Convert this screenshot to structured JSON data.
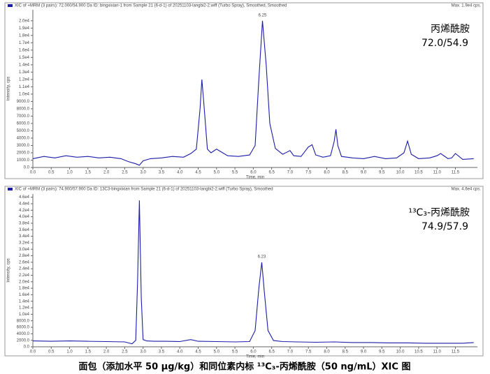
{
  "chart_data": [
    {
      "type": "line",
      "series": [
        {
          "name": "XIC of +MRM (3 pairs): 72.000/54.900 Da ID: bingxixian-1 from Sample 21 (6-d-1) of 20251103-langbi2-2.wiff (Turbo Spray), Smoothed, Smoothed",
          "color": "#1c1ca8",
          "values": [
            1200,
            1500,
            1300,
            1600,
            1400,
            1500,
            1300,
            1400,
            1200,
            800,
            500,
            300,
            900,
            1200,
            1300,
            1500,
            1400,
            1900,
            2500,
            8000,
            12000,
            9000,
            2500,
            2000,
            2500,
            2200,
            1600,
            1500,
            1700,
            3000,
            12000,
            20000,
            14000,
            6000,
            2600,
            1800,
            2300,
            1600,
            1500,
            2800,
            3100,
            1700,
            1400,
            1600,
            3500,
            5200,
            3000,
            1500,
            1300,
            1200,
            1500,
            1200,
            1300,
            2000,
            3600,
            1800,
            1200,
            1300,
            1600,
            1900,
            1200,
            1300,
            1900,
            1100,
            1200
          ]
        }
      ],
      "x": [
        0,
        0.3,
        0.6,
        0.9,
        1.2,
        1.5,
        1.8,
        2.1,
        2.4,
        2.6,
        2.8,
        2.9,
        3.0,
        3.2,
        3.5,
        3.8,
        4.1,
        4.3,
        4.45,
        4.55,
        4.6,
        4.65,
        4.75,
        4.85,
        5.0,
        5.1,
        5.3,
        5.6,
        5.9,
        6.05,
        6.15,
        6.25,
        6.35,
        6.45,
        6.6,
        6.8,
        7.0,
        7.1,
        7.3,
        7.5,
        7.6,
        7.7,
        7.9,
        8.1,
        8.2,
        8.25,
        8.3,
        8.4,
        8.7,
        9.0,
        9.3,
        9.6,
        9.9,
        10.1,
        10.2,
        10.3,
        10.5,
        10.8,
        11.0,
        11.1,
        11.3,
        11.4,
        11.5,
        11.7,
        12.0
      ],
      "max_label": "Max. 1.9e4 cps.",
      "peak_label": "6.25",
      "compound": "丙烯酰胺",
      "transition": "72.0/54.9",
      "xlabel": "Time, min",
      "ylabel": "Intensity, cps",
      "xlim": [
        0,
        12.1
      ],
      "ylim": [
        0,
        21500
      ],
      "xticks": [
        {
          "value": 0,
          "label": "0.0"
        },
        0.5,
        {
          "value": 1,
          "label": "1.0"
        },
        1.5,
        {
          "value": 2,
          "label": "2.0"
        },
        2.5,
        {
          "value": 3,
          "label": "3.0"
        },
        3.5,
        {
          "value": 4,
          "label": "4.0"
        },
        4.5,
        {
          "value": 5,
          "label": "5.0"
        },
        5.5,
        {
          "value": 6,
          "label": "6.0"
        },
        6.5,
        {
          "value": 7,
          "label": "7.0"
        },
        7.5,
        {
          "value": 8,
          "label": "8.0"
        },
        8.5,
        {
          "value": 9,
          "label": "9.0"
        },
        9.5,
        {
          "value": 10,
          "label": "10.0"
        },
        10.5,
        {
          "value": 11,
          "label": "11.0"
        },
        11.5
      ],
      "yticks": [
        {
          "value": 0,
          "label": "0.0"
        },
        {
          "value": 1000,
          "label": "1000.0"
        },
        {
          "value": 2000,
          "label": "2000.0"
        },
        {
          "value": 3000,
          "label": "3000.0"
        },
        {
          "value": 4000,
          "label": "4000.0"
        },
        {
          "value": 5000,
          "label": "5000.0"
        },
        {
          "value": 6000,
          "label": "6000.0"
        },
        {
          "value": 7000,
          "label": "7000.0"
        },
        {
          "value": 8000,
          "label": "8000.0"
        },
        {
          "value": 9000,
          "label": "9000.0"
        },
        {
          "value": 10000,
          "label": "1.0e4"
        },
        {
          "value": 11000,
          "label": "1.1e4"
        },
        {
          "value": 12000,
          "label": "1.2e4"
        },
        {
          "value": 13000,
          "label": "1.3e4"
        },
        {
          "value": 14000,
          "label": "1.4e4"
        },
        {
          "value": 15000,
          "label": "1.5e4"
        },
        {
          "value": 16000,
          "label": "1.6e4"
        },
        {
          "value": 17000,
          "label": "1.7e4"
        },
        {
          "value": 18000,
          "label": "1.8e4"
        },
        {
          "value": 19000,
          "label": "1.9e4"
        },
        {
          "value": 20000,
          "label": "2.0e4"
        }
      ]
    },
    {
      "type": "line",
      "series": [
        {
          "name": "XIC of +MRM (3 pairs): 74.900/57.900 Da ID: 13C3-bingxixian from Sample 21 (6-d-1) of 20251103-langbi2-2.wiff (Turbo Spray), Smoothed",
          "color": "#1c1ca8",
          "values": [
            1800,
            1700,
            1800,
            1700,
            1600,
            1500,
            900,
            2000,
            20000,
            45000,
            15000,
            2200,
            1800,
            1700,
            1700,
            1600,
            2200,
            1700,
            1600,
            1500,
            1600,
            5000,
            18000,
            26000,
            17000,
            5000,
            1900,
            1600,
            1500,
            1400,
            1500,
            1300,
            1300,
            1200,
            1200,
            1100,
            1100,
            1100,
            1300
          ]
        }
      ],
      "x": [
        0,
        0.5,
        1,
        1.5,
        2,
        2.5,
        2.7,
        2.8,
        2.85,
        2.9,
        2.95,
        3.0,
        3.1,
        3.3,
        3.6,
        4.0,
        4.3,
        4.5,
        5.0,
        5.5,
        5.9,
        6.05,
        6.15,
        6.23,
        6.3,
        6.4,
        6.55,
        6.8,
        7.2,
        7.7,
        8.2,
        8.7,
        9.2,
        9.7,
        10.2,
        10.7,
        11.2,
        11.7,
        12.0
      ],
      "max_label": "Max. 4.6e4 cps.",
      "peak_label": "6.23",
      "compound": "¹³C₃-丙烯酰胺",
      "transition": "74.9/57.9",
      "xlabel": "Time, min",
      "ylabel": "Intensity, cps",
      "xlim": [
        0,
        12.1
      ],
      "ylim": [
        0,
        47000
      ],
      "xticks": [
        {
          "value": 0,
          "label": "0.0"
        },
        0.5,
        {
          "value": 1,
          "label": "1.0"
        },
        1.5,
        {
          "value": 2,
          "label": "2.0"
        },
        2.5,
        {
          "value": 3,
          "label": "3.0"
        },
        3.5,
        {
          "value": 4,
          "label": "4.0"
        },
        4.5,
        {
          "value": 5,
          "label": "5.0"
        },
        5.5,
        {
          "value": 6,
          "label": "6.0"
        },
        6.5,
        {
          "value": 7,
          "label": "7.0"
        },
        7.5,
        {
          "value": 8,
          "label": "8.0"
        },
        8.5,
        {
          "value": 9,
          "label": "9.0"
        },
        9.5,
        {
          "value": 10,
          "label": "10.0"
        },
        10.5,
        {
          "value": 11,
          "label": "11.0"
        },
        11.5
      ],
      "yticks": [
        {
          "value": 0,
          "label": "0.0"
        },
        {
          "value": 2000,
          "label": "2000.0"
        },
        {
          "value": 4000,
          "label": "4000.0"
        },
        {
          "value": 6000,
          "label": "6000.0"
        },
        {
          "value": 8000,
          "label": "8000.0"
        },
        {
          "value": 10000,
          "label": "1.0e4"
        },
        {
          "value": 12000,
          "label": "1.2e4"
        },
        {
          "value": 14000,
          "label": "1.4e4"
        },
        {
          "value": 16000,
          "label": "1.6e4"
        },
        {
          "value": 18000,
          "label": "1.8e4"
        },
        {
          "value": 20000,
          "label": "2.0e4"
        },
        {
          "value": 22000,
          "label": "2.2e4"
        },
        {
          "value": 24000,
          "label": "2.4e4"
        },
        {
          "value": 26000,
          "label": "2.6e4"
        },
        {
          "value": 28000,
          "label": "2.8e4"
        },
        {
          "value": 30000,
          "label": "3.0e4"
        },
        {
          "value": 32000,
          "label": "3.2e4"
        },
        {
          "value": 34000,
          "label": "3.4e4"
        },
        {
          "value": 36000,
          "label": "3.6e4"
        },
        {
          "value": 38000,
          "label": "3.8e4"
        },
        {
          "value": 40000,
          "label": "4.0e4"
        },
        {
          "value": 42000,
          "label": "4.2e4"
        },
        {
          "value": 44000,
          "label": "4.4e4"
        },
        {
          "value": 46000,
          "label": "4.6e4"
        }
      ]
    }
  ],
  "caption": "面包（添加水平 50 μg/kg）和同位素内标 ¹³C₃-丙烯酰胺（50 ng/mL）XIC 图"
}
